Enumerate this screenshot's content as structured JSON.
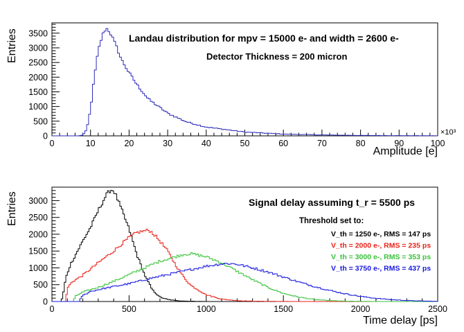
{
  "chart_data": [
    {
      "type": "histogram",
      "title": "Landau distribution for mpv = 15000 e- and width = 2600 e-",
      "subtitle": "Detector Thickness = 200 micron",
      "xlabel": "Amplitude [e]",
      "ylabel": "Entries",
      "x_exponent": "×10³",
      "xlim": [
        0,
        100
      ],
      "ylim": [
        0,
        3850
      ],
      "xticks": [
        0,
        10,
        20,
        30,
        40,
        50,
        60,
        70,
        80,
        90,
        100
      ],
      "yticks": [
        0,
        500,
        1000,
        1500,
        2000,
        2500,
        3000,
        3500
      ],
      "color": "#2b2bb8",
      "series": [
        {
          "name": "Amplitude",
          "x": [
            0,
            7,
            8,
            9,
            10,
            11,
            12,
            13,
            14,
            15,
            16,
            17,
            18,
            20,
            22,
            25,
            30,
            35,
            40,
            50,
            60,
            70,
            80,
            90,
            100
          ],
          "y": [
            0,
            0,
            30,
            200,
            900,
            2000,
            2900,
            3400,
            3680,
            3550,
            3250,
            2950,
            2600,
            2150,
            1750,
            1250,
            770,
            470,
            300,
            130,
            60,
            30,
            15,
            7,
            3
          ]
        }
      ]
    },
    {
      "type": "histogram",
      "title": "Signal delay assuming t_r = 5500 ps",
      "legend_title": "Threshold set to:",
      "xlabel": "Time delay [ps]",
      "ylabel": "Entries",
      "xlim": [
        0,
        2500
      ],
      "ylim": [
        0,
        3400
      ],
      "xticks": [
        0,
        500,
        1000,
        1500,
        2000,
        2500
      ],
      "yticks": [
        0,
        500,
        1000,
        1500,
        2000,
        2500,
        3000
      ],
      "legend_position": "top-right",
      "series": [
        {
          "name": "V_th = 1250 e-, RMS = 147 ps",
          "color": "#000000",
          "x": [
            0,
            60,
            70,
            90,
            120,
            160,
            200,
            250,
            300,
            350,
            380,
            400,
            420,
            450,
            500,
            550,
            600,
            650,
            700,
            750,
            800,
            850,
            900,
            950,
            1000
          ],
          "y": [
            0,
            0,
            150,
            700,
            1100,
            1450,
            1800,
            2200,
            2700,
            3150,
            3320,
            3300,
            3100,
            2750,
            2150,
            1400,
            800,
            350,
            130,
            60,
            30,
            15,
            8,
            4,
            0
          ]
        },
        {
          "name": "V_th = 2000 e-, RMS = 235 ps",
          "color": "#e8221a",
          "x": [
            0,
            90,
            100,
            130,
            200,
            300,
            400,
            500,
            550,
            600,
            630,
            650,
            700,
            750,
            800,
            850,
            900,
            1000,
            1100,
            1200,
            1300,
            1400,
            1500,
            1600
          ],
          "y": [
            0,
            0,
            400,
            580,
            780,
            1150,
            1500,
            1900,
            2050,
            2100,
            2120,
            2050,
            1800,
            1500,
            1100,
            750,
            480,
            200,
            70,
            25,
            10,
            5,
            2,
            0
          ]
        },
        {
          "name": "V_th = 3000 e-, RMS = 353 ps",
          "color": "#3ac23a",
          "x": [
            0,
            140,
            150,
            200,
            300,
            400,
            500,
            600,
            700,
            800,
            850,
            900,
            950,
            1000,
            1100,
            1200,
            1300,
            1400,
            1500,
            1600,
            1700,
            1800,
            1900,
            2000,
            2100
          ],
          "y": [
            0,
            0,
            150,
            280,
            420,
            600,
            800,
            1000,
            1200,
            1330,
            1400,
            1420,
            1380,
            1330,
            1150,
            900,
            650,
            420,
            240,
            130,
            60,
            25,
            10,
            4,
            0
          ]
        },
        {
          "name": "V_th = 3750 e-, RMS = 437 ps",
          "color": "#1818e0",
          "x": [
            0,
            180,
            190,
            250,
            350,
            500,
            650,
            800,
            900,
            1000,
            1100,
            1150,
            1200,
            1300,
            1400,
            1500,
            1600,
            1700,
            1800,
            1900,
            2000,
            2100,
            2200,
            2300,
            2400,
            2500
          ],
          "y": [
            0,
            0,
            150,
            300,
            400,
            530,
            700,
            850,
            950,
            1050,
            1120,
            1130,
            1110,
            1000,
            880,
            730,
            580,
            450,
            330,
            230,
            150,
            95,
            55,
            30,
            15,
            5
          ]
        }
      ]
    }
  ]
}
